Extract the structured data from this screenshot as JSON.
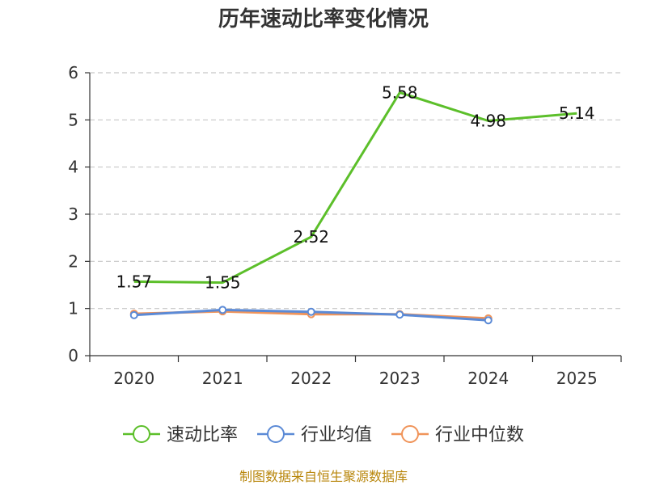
{
  "chart_data": {
    "type": "line",
    "title": "历年速动比率变化情况",
    "categories": [
      "2020",
      "2021",
      "2022",
      "2023",
      "2024",
      "2025"
    ],
    "ylim": [
      0,
      6
    ],
    "yticks": [
      0,
      1,
      2,
      3,
      4,
      5,
      6
    ],
    "grid": true,
    "legend_position": "bottom",
    "series": [
      {
        "name": "速动比率",
        "color": "#5cbf2a",
        "values": [
          1.57,
          1.55,
          2.52,
          5.58,
          4.98,
          5.14
        ],
        "labels": [
          "1.57",
          "1.55",
          "2.52",
          "5.58",
          "4.98",
          "5.14"
        ]
      },
      {
        "name": "行业均值",
        "color": "#5b8ad6",
        "values": [
          0.86,
          0.97,
          0.93,
          0.87,
          0.75,
          null
        ]
      },
      {
        "name": "行业中位数",
        "color": "#f0945a",
        "values": [
          0.89,
          0.94,
          0.88,
          0.88,
          0.79,
          null
        ]
      }
    ],
    "source": "制图数据来自恒生聚源数据库"
  }
}
